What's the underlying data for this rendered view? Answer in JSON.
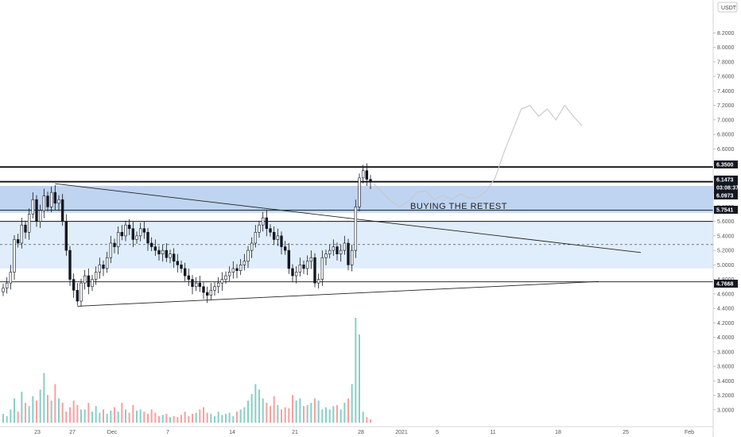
{
  "chart_data": {
    "type": "candlestick",
    "currency": "USDT",
    "ylim": [
      2.9,
      8.5
    ],
    "y_ticks": [
      "8.2000",
      "8.0000",
      "7.8000",
      "7.6000",
      "7.4000",
      "7.2000",
      "7.0000",
      "6.8000",
      "6.6000",
      "6.4000",
      "6.2000",
      "6.0000",
      "5.8000",
      "5.6000",
      "5.4000",
      "5.2000",
      "5.0000",
      "4.8000",
      "4.6000",
      "4.4000",
      "4.2000",
      "4.0000",
      "3.8000",
      "3.6000",
      "3.4000",
      "3.2000",
      "3.0000"
    ],
    "x_ticks": [
      "23",
      "27",
      "Dec",
      "7",
      "14",
      "21",
      "28",
      "2021",
      "5",
      "11",
      "18",
      "25",
      "Feb"
    ],
    "annotation": "BUYING THE RETEST",
    "price_tags": [
      {
        "label": "6.3500",
        "value": 6.35,
        "color": "#131722"
      },
      {
        "label": "6.1473",
        "value": 6.1473,
        "color": "#131722"
      },
      {
        "label": "03:08:37",
        "value": 6.03,
        "color": "#131722"
      },
      {
        "label": "6.0973",
        "value": 6.0973,
        "color": "#131722"
      },
      {
        "label": "5.7541",
        "value": 5.7541,
        "color": "#131722"
      },
      {
        "label": "4.7668",
        "value": 4.7668,
        "color": "#131722"
      }
    ],
    "horizontal_levels": [
      6.35,
      6.1473,
      5.7541,
      5.6,
      4.7668
    ],
    "resistance_zone": [
      5.72,
      6.09
    ],
    "range_zone": [
      4.95,
      5.6
    ],
    "dashed_level": 5.28,
    "trendline_descending": [
      [
        0,
        6.12
      ],
      [
        110,
        5.17
      ]
    ],
    "trendline_ascending": [
      [
        10,
        4.43
      ],
      [
        105,
        4.77
      ]
    ],
    "closes": [
      4.68,
      4.75,
      4.9,
      5.35,
      5.3,
      5.55,
      5.45,
      5.7,
      5.9,
      5.6,
      5.75,
      5.95,
      5.8,
      6.0,
      5.85,
      5.9,
      5.6,
      5.2,
      4.8,
      4.65,
      4.5,
      4.75,
      4.85,
      4.7,
      4.8,
      4.9,
      5.0,
      4.95,
      5.1,
      5.3,
      5.25,
      5.45,
      5.4,
      5.55,
      5.5,
      5.35,
      5.4,
      5.5,
      5.45,
      5.3,
      5.25,
      5.2,
      5.15,
      5.2,
      5.1,
      5.15,
      5.05,
      5.0,
      4.95,
      4.85,
      4.8,
      4.7,
      4.75,
      4.7,
      4.62,
      4.58,
      4.65,
      4.7,
      4.75,
      4.8,
      4.85,
      4.9,
      4.95,
      4.92,
      5.0,
      5.05,
      5.2,
      5.3,
      5.45,
      5.55,
      5.65,
      5.5,
      5.45,
      5.35,
      5.4,
      5.25,
      5.2,
      4.95,
      4.85,
      4.9,
      5.0,
      4.95,
      5.05,
      5.1,
      4.75,
      4.8,
      5.1,
      5.15,
      5.2,
      5.25,
      5.15,
      5.2,
      5.3,
      5.0,
      5.2,
      5.8,
      6.2,
      6.3,
      6.18,
      6.15
    ],
    "projection": [
      6.12,
      6.0,
      5.88,
      5.8,
      5.88,
      6.0,
      6.02,
      5.9,
      5.96,
      5.9,
      5.98,
      5.92,
      5.93,
      6.02,
      6.2,
      6.55,
      6.85,
      7.15,
      7.2,
      7.05,
      7.15,
      7.0,
      7.2,
      7.05,
      6.92
    ],
    "volumes": [
      8,
      6,
      12,
      22,
      10,
      28,
      18,
      15,
      24,
      20,
      30,
      45,
      25,
      20,
      35,
      22,
      18,
      10,
      14,
      20,
      16,
      12,
      12,
      18,
      10,
      15,
      9,
      12,
      8,
      11,
      14,
      10,
      18,
      12,
      9,
      16,
      11,
      12,
      10,
      8,
      12,
      9,
      6,
      7,
      8,
      5,
      6,
      5,
      7,
      10,
      6,
      8,
      9,
      12,
      14,
      9,
      8,
      6,
      10,
      7,
      8,
      9,
      6,
      10,
      12,
      14,
      20,
      26,
      35,
      30,
      22,
      18,
      15,
      24,
      16,
      12,
      14,
      13,
      25,
      20,
      22,
      15,
      16,
      18,
      22,
      20,
      12,
      14,
      12,
      15,
      16,
      12,
      18,
      22,
      35,
      95,
      80,
      10,
      5,
      3
    ],
    "volume_colors_up": "#26a69a",
    "volume_colors_down": "#ef5350"
  }
}
